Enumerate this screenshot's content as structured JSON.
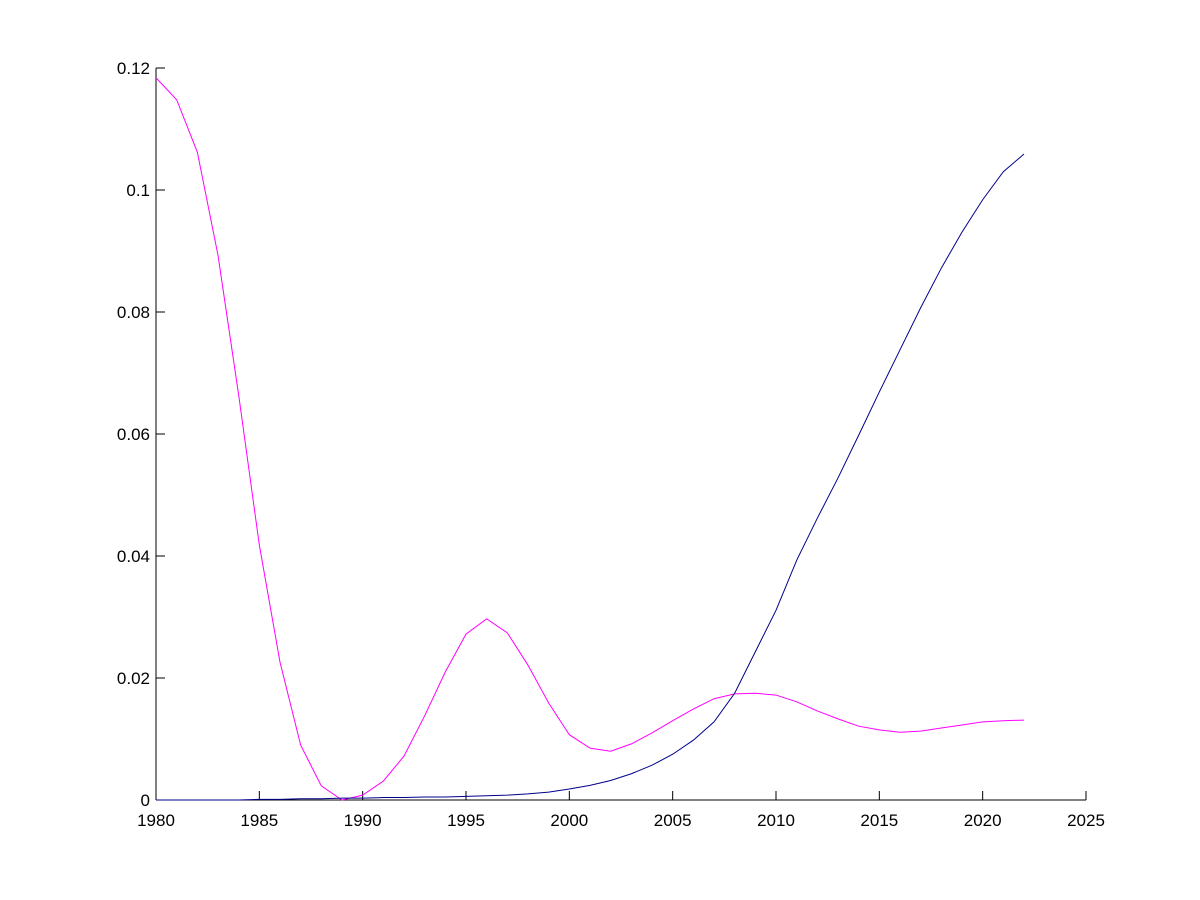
{
  "chart_data": {
    "type": "line",
    "x": [
      1980,
      1981,
      1982,
      1983,
      1984,
      1985,
      1986,
      1987,
      1988,
      1989,
      1990,
      1991,
      1992,
      1993,
      1994,
      1995,
      1996,
      1997,
      1998,
      1999,
      2000,
      2001,
      2002,
      2003,
      2004,
      2005,
      2006,
      2007,
      2008,
      2009,
      2010,
      2011,
      2012,
      2013,
      2014,
      2015,
      2016,
      2017,
      2018,
      2019,
      2020,
      2021,
      2022
    ],
    "series": [
      {
        "color": "#ff00ff",
        "values": [
          0.1184,
          0.1148,
          0.1062,
          0.0893,
          0.0664,
          0.0418,
          0.0226,
          0.009,
          0.0023,
          0.0,
          0.0008,
          0.0031,
          0.0072,
          0.0138,
          0.021,
          0.0272,
          0.0297,
          0.0274,
          0.0221,
          0.0159,
          0.0107,
          0.0085,
          0.008,
          0.0092,
          0.011,
          0.013,
          0.0149,
          0.0166,
          0.0174,
          0.0175,
          0.0172,
          0.0161,
          0.0146,
          0.0133,
          0.0121,
          0.0115,
          0.0111,
          0.0113,
          0.0118,
          0.0123,
          0.0128,
          0.013,
          0.0131
        ]
      },
      {
        "color": "#00008b",
        "values": [
          0,
          0,
          0,
          0,
          0,
          0.0001,
          0.0001,
          0.0002,
          0.0002,
          0.0003,
          0.0003,
          0.0004,
          0.0004,
          0.0005,
          0.0005,
          0.0006,
          0.0007,
          0.0008,
          0.001,
          0.0013,
          0.0018,
          0.0024,
          0.0032,
          0.0043,
          0.0057,
          0.0075,
          0.0098,
          0.0128,
          0.0175,
          0.0243,
          0.0311,
          0.0393,
          0.0462,
          0.0528,
          0.0598,
          0.0669,
          0.0738,
          0.0807,
          0.0872,
          0.0931,
          0.0984,
          0.103,
          0.1059
        ]
      }
    ],
    "xlim": [
      1980,
      2025
    ],
    "xticks": [
      1980,
      1985,
      1990,
      1995,
      2000,
      2005,
      2010,
      2015,
      2020,
      2025
    ],
    "ylim": [
      0,
      0.12
    ],
    "yticks": [
      0,
      0.02,
      0.04,
      0.06,
      0.08,
      0.1,
      0.12
    ]
  }
}
